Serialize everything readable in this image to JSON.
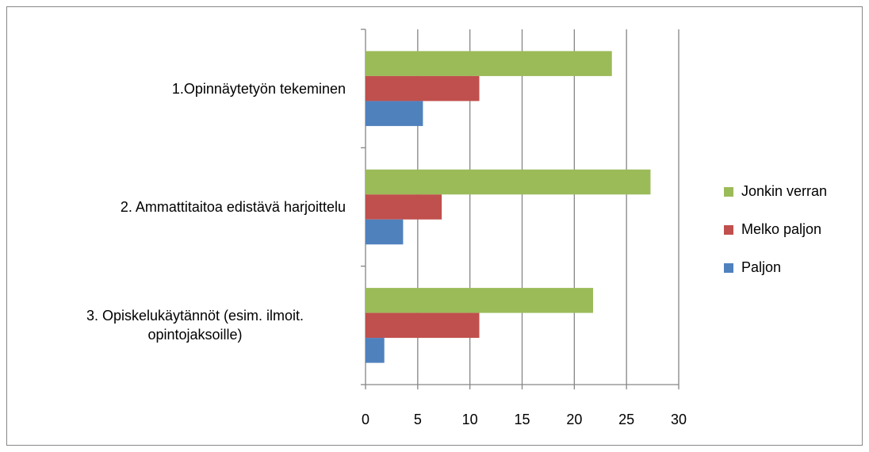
{
  "chart_data": {
    "type": "bar",
    "orientation": "horizontal",
    "categories": [
      "1.Opinnäytetyön tekeminen",
      "2. Ammattitaitoa  edistävä harjoittelu",
      "3. Opiskelukäytännöt (esim. ilmoit. opintojaksoille)"
    ],
    "series": [
      {
        "name": "Jonkin verran",
        "color": "#9bbb59",
        "values": [
          23.6,
          27.3,
          21.8
        ]
      },
      {
        "name": "Melko paljon",
        "color": "#c0504d",
        "values": [
          10.9,
          7.3,
          10.9
        ]
      },
      {
        "name": "Paljon",
        "color": "#4f81bd",
        "values": [
          5.5,
          3.6,
          1.8
        ]
      }
    ],
    "xlim": [
      0,
      30
    ],
    "xticks": [
      0,
      5,
      10,
      15,
      20,
      25,
      30
    ],
    "grid": true,
    "legend": "right"
  }
}
